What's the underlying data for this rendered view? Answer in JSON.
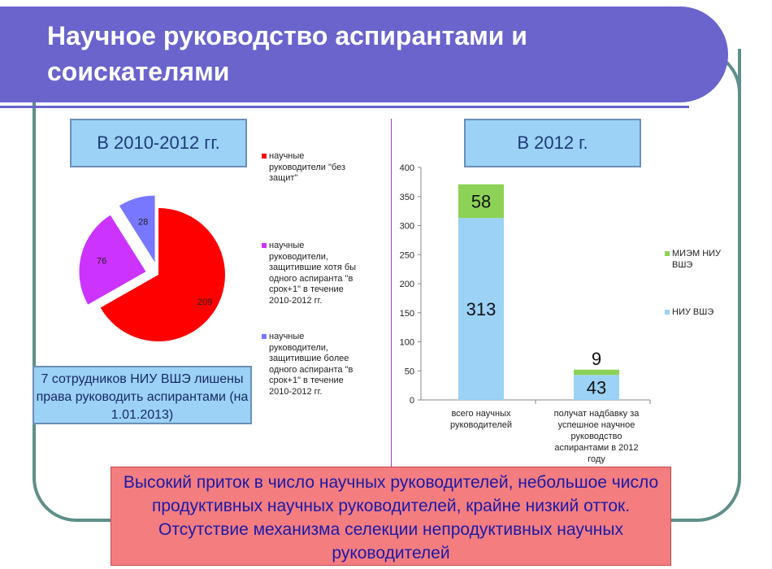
{
  "slide": {
    "title": "Научное руководство аспирантами и соискателями",
    "left_header": "В 2010-2012 гг.",
    "right_header": "В 2012 г.",
    "note": "7 сотрудников НИУ ВШЭ лишены права руководить аспирантами (на 1.01.2013)",
    "conclusion": "Высокий приток в число научных руководителей, небольшое число продуктивных научных руководителей, крайне низкий отток. Отсутствие механизма селекции непродуктивных научных руководителей"
  },
  "colors": {
    "title_bg": "#6a64cc",
    "frame": "#5e8f8a",
    "pie_red": "#ff0000",
    "pie_magenta": "#cc33ff",
    "pie_blue": "#7777ff",
    "bar_blue": "#9bd2f5",
    "bar_green": "#8cd257"
  },
  "chart_data": [
    {
      "type": "pie",
      "labels": [
        "научные руководители \"без защит\"",
        "научные руководители, защитившие хотя бы одного аспиранта \"в срок+1\" в течение 2010-2012 гг.",
        "научные руководители, защитившие более одного аспиранта \"в срок+1\" в течение 2010-2012 гг."
      ],
      "values": [
        209,
        76,
        28
      ],
      "colors": [
        "#ff0000",
        "#cc33ff",
        "#7777ff"
      ],
      "exploded": true,
      "legend_position": "right"
    },
    {
      "type": "bar",
      "stacked": true,
      "categories": [
        "всего научных руководителей",
        "получат надбавку за успешное научное руководство аспирантами в 2012 году"
      ],
      "series": [
        {
          "name": "НИУ ВШЭ",
          "values": [
            313,
            43
          ],
          "color": "#9bd2f5"
        },
        {
          "name": "МИЭМ НИУ ВШЭ",
          "values": [
            58,
            9
          ],
          "color": "#8cd257"
        }
      ],
      "ylim": [
        0,
        400
      ],
      "yticks": [
        0,
        50,
        100,
        150,
        200,
        250,
        300,
        350,
        400
      ],
      "grid": false,
      "legend_position": "right"
    }
  ]
}
